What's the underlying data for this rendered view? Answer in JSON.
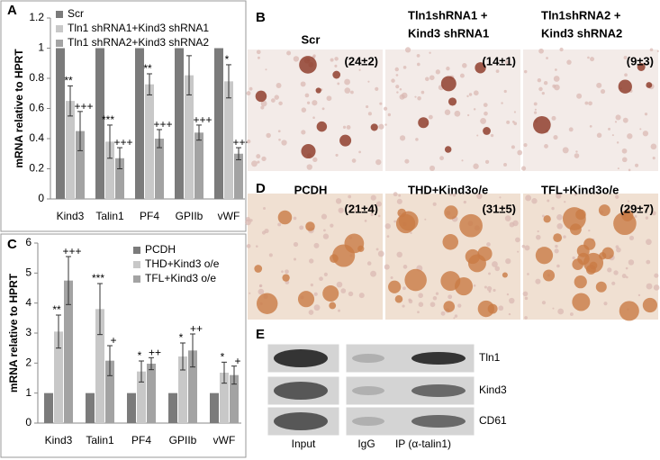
{
  "chart_data": [
    {
      "type": "bar",
      "panel": "A",
      "ylabel": "mRNA relative to HPRT",
      "categories": [
        "Kind3",
        "Talin1",
        "PF4",
        "GPIIb",
        "vWF"
      ],
      "ylim": [
        0,
        1.2
      ],
      "yticks": [
        0,
        0.2,
        0.4,
        0.6,
        0.8,
        1,
        1.2
      ],
      "grid": false,
      "series": [
        {
          "name": "Scr",
          "color": "#7b7b7b",
          "values": [
            1,
            1,
            1,
            1,
            1
          ],
          "errors": [
            0,
            0,
            0,
            0,
            0
          ],
          "significance": [
            null,
            null,
            null,
            null,
            null
          ]
        },
        {
          "name": "Tln1 shRNA1+Kind3 shRNA1",
          "color": "#c8c8c8",
          "values": [
            0.65,
            0.38,
            0.76,
            0.82,
            0.78
          ],
          "errors": [
            0.1,
            0.11,
            0.07,
            0.13,
            0.11
          ],
          "significance": [
            "**",
            "***",
            "**",
            null,
            "*"
          ]
        },
        {
          "name": "Tln1 shRNA2+Kind3 shRNA2",
          "color": "#a3a3a3",
          "values": [
            0.45,
            0.27,
            0.4,
            0.44,
            0.3
          ],
          "errors": [
            0.13,
            0.07,
            0.06,
            0.05,
            0.04
          ],
          "significance": [
            "+++",
            "+++",
            "+++",
            "+++",
            "+++"
          ]
        }
      ]
    },
    {
      "type": "bar",
      "panel": "C",
      "ylabel": "mRNA relative to HPRT",
      "categories": [
        "Kind3",
        "Talin1",
        "PF4",
        "GPIIb",
        "vWF"
      ],
      "ylim": [
        0,
        6
      ],
      "yticks": [
        0,
        1,
        2,
        3,
        4,
        5,
        6
      ],
      "grid": false,
      "series": [
        {
          "name": "PCDH",
          "color": "#7b7b7b",
          "values": [
            1,
            1,
            1,
            1,
            1
          ],
          "errors": [
            0,
            0,
            0,
            0,
            0
          ],
          "significance": [
            null,
            null,
            null,
            null,
            null
          ]
        },
        {
          "name": "THD+Kind3 o/e",
          "color": "#c8c8c8",
          "values": [
            3.05,
            3.8,
            1.72,
            2.22,
            1.68
          ],
          "errors": [
            0.55,
            0.85,
            0.35,
            0.45,
            0.35
          ],
          "significance": [
            "**",
            "***",
            "*",
            "*",
            "*"
          ]
        },
        {
          "name": "TFL+Kind3 o/e",
          "color": "#a3a3a3",
          "values": [
            4.75,
            2.08,
            1.98,
            2.42,
            1.6
          ],
          "errors": [
            0.8,
            0.5,
            0.2,
            0.55,
            0.3
          ],
          "significance": [
            "+++",
            "+",
            "++",
            "++",
            "+"
          ]
        }
      ]
    }
  ],
  "panels": {
    "B": {
      "label": "B",
      "tiles": [
        {
          "caption": [
            "Scr"
          ],
          "count": "(24±2)"
        },
        {
          "caption": [
            "Tln1shRNA1 +",
            "Kind3 shRNA1"
          ],
          "count": "(14±1)"
        },
        {
          "caption": [
            "Tln1shRNA2 +",
            "Kind3 shRNA2"
          ],
          "count": "(9±3)"
        }
      ]
    },
    "D": {
      "label": "D",
      "tiles": [
        {
          "caption": [
            "PCDH"
          ],
          "count": "(21±4)"
        },
        {
          "caption": [
            "THD+Kind3o/e"
          ],
          "count": "(31±5)"
        },
        {
          "caption": [
            "TFL+Kind3o/e"
          ],
          "count": "(29±7)"
        }
      ]
    },
    "E": {
      "label": "E",
      "rows": [
        "Tln1",
        "Kind3",
        "CD61"
      ],
      "lanes": [
        "Input",
        "IgG",
        "IP (α-talin1)"
      ]
    }
  }
}
